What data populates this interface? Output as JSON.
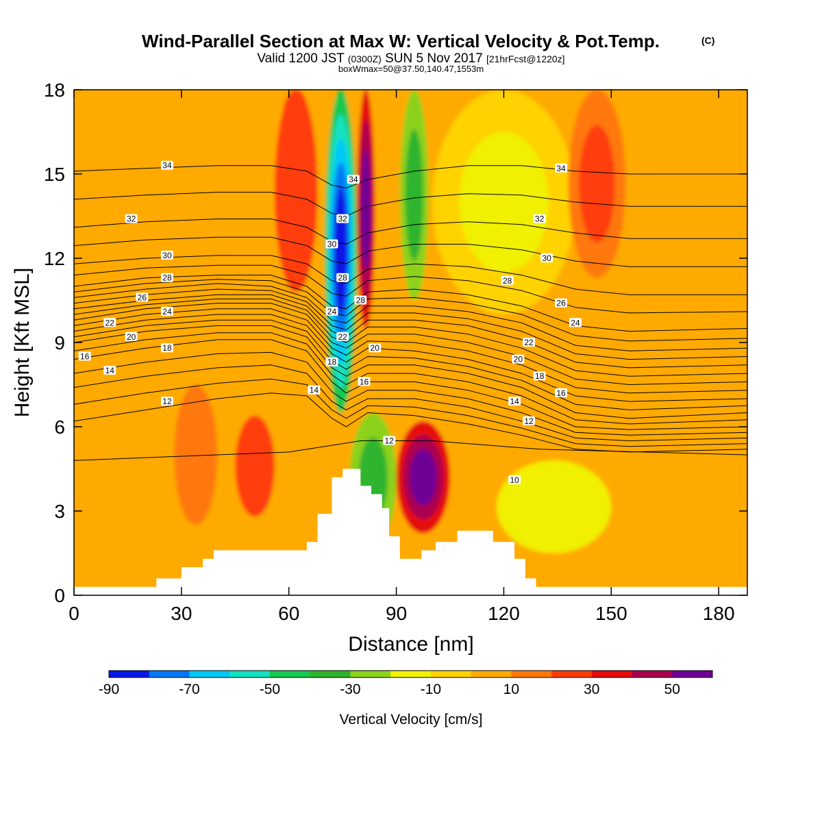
{
  "chart_data": {
    "type": "heatmap",
    "title": "Wind-Parallel Section at Max W: Vertical Velocity & Pot.Temp.",
    "title_mark": "(C)",
    "subtitle": {
      "part1": "Valid 1200 JST",
      "part2": "(0300Z)",
      "part3": "SUN 5 Nov 2017",
      "part4": "[21hrFcst@1220z]"
    },
    "subtitle2": "boxWmax=50@37.50,140.47,1553m",
    "xlabel": "Distance [nm]",
    "ylabel": "Height [Kft MSL]",
    "xlim": [
      0,
      188
    ],
    "ylim": [
      0,
      18
    ],
    "xticks": [
      "0",
      "30",
      "60",
      "90",
      "120",
      "150",
      "180"
    ],
    "yticks": [
      "0",
      "3",
      "6",
      "9",
      "12",
      "15",
      "18"
    ],
    "colorbar": {
      "label": "Vertical Velocity [cm/s]",
      "ticks": [
        "-90",
        "-70",
        "-50",
        "-30",
        "-10",
        "10",
        "30",
        "50"
      ],
      "bounds": [
        -90,
        -80,
        -70,
        -60,
        -50,
        -40,
        -30,
        -20,
        -10,
        0,
        10,
        20,
        30,
        40,
        50,
        60
      ],
      "colors": [
        "#0a18e6",
        "#0078f5",
        "#00c8f5",
        "#14e1c0",
        "#14c850",
        "#2db42d",
        "#8cd21e",
        "#f0f000",
        "#ffd200",
        "#ffaa00",
        "#ff780a",
        "#ff3c0a",
        "#e60a0a",
        "#aa0050",
        "#6e0096"
      ]
    },
    "background_level_range": [
      0,
      10
    ],
    "velocity_features": [
      {
        "x_range": [
          0,
          188
        ],
        "z_range": [
          0,
          18
        ],
        "range_cm_s": [
          0,
          10
        ]
      },
      {
        "x_range": [
          28,
          40
        ],
        "z_range": [
          2.5,
          7.5
        ],
        "range_cm_s": [
          10,
          20
        ]
      },
      {
        "x_range": [
          45,
          56
        ],
        "z_range": [
          2.8,
          6.4
        ],
        "range_cm_s": [
          20,
          30
        ]
      },
      {
        "x_range": [
          56,
          68
        ],
        "z_range": [
          10.8,
          18
        ],
        "range_cm_s": [
          20,
          30
        ]
      },
      {
        "x_range": [
          70,
          79
        ],
        "z_range": [
          6.5,
          18
        ],
        "range_cm_s": [
          -90,
          -40
        ]
      },
      {
        "x_range": [
          79,
          84
        ],
        "z_range": [
          9.5,
          18
        ],
        "range_cm_s": [
          30,
          60
        ]
      },
      {
        "x_range": [
          91,
          99
        ],
        "z_range": [
          10.5,
          18
        ],
        "range_cm_s": [
          -40,
          -20
        ]
      },
      {
        "x_range": [
          77,
          90
        ],
        "z_range": [
          1.8,
          6.5
        ],
        "range_cm_s": [
          -40,
          -20
        ]
      },
      {
        "x_range": [
          90,
          105
        ],
        "z_range": [
          2.2,
          6.2
        ],
        "range_cm_s": [
          30,
          60
        ]
      },
      {
        "x_range": [
          100,
          140
        ],
        "z_range": [
          10,
          18
        ],
        "range_cm_s": [
          -20,
          0
        ]
      },
      {
        "x_range": [
          118,
          150
        ],
        "z_range": [
          1.5,
          4.8
        ],
        "range_cm_s": [
          -20,
          -10
        ]
      },
      {
        "x_range": [
          138,
          154
        ],
        "z_range": [
          11.3,
          18
        ],
        "range_cm_s": [
          10,
          30
        ]
      }
    ],
    "isentropes": [
      {
        "level": "10",
        "z": [
          4.8,
          4.9,
          5.0,
          5.1,
          5.3,
          5.4,
          5.5,
          5.5,
          5.5,
          5.4,
          5.3,
          5.2,
          5.0
        ],
        "x": [
          0,
          20,
          40,
          60,
          70,
          75,
          80,
          90,
          100,
          110,
          120,
          130,
          188
        ]
      },
      {
        "level": "12",
        "z": [
          6.2,
          6.6,
          7.0,
          7.2,
          7.1,
          6.3,
          6.0,
          6.5,
          6.4,
          6.1,
          5.7,
          5.2,
          5.1,
          5.2
        ]
      },
      {
        "level": "14",
        "z": [
          7.4,
          7.8,
          8.1,
          8.2,
          7.9,
          6.9,
          6.6,
          7.0,
          7.0,
          6.7,
          6.2,
          5.6,
          5.5,
          5.6
        ]
      },
      {
        "level": "16",
        "z": [
          8.4,
          8.8,
          9.1,
          9.1,
          8.7,
          7.6,
          7.2,
          7.6,
          7.6,
          7.3,
          6.8,
          6.0,
          5.9,
          6.0
        ]
      },
      {
        "level": "18",
        "z": [
          9.0,
          9.4,
          9.6,
          9.6,
          9.2,
          8.1,
          7.8,
          8.2,
          8.2,
          7.9,
          7.4,
          6.5,
          6.3,
          6.5
        ]
      },
      {
        "level": "20",
        "z": [
          9.4,
          9.8,
          10.0,
          10.0,
          9.6,
          8.6,
          8.3,
          8.8,
          8.7,
          8.4,
          7.9,
          7.1,
          6.9,
          7.0
        ]
      },
      {
        "level": "22",
        "z": [
          9.8,
          10.2,
          10.4,
          10.4,
          10.0,
          9.0,
          8.8,
          9.3,
          9.3,
          9.0,
          8.5,
          7.7,
          7.5,
          7.6
        ]
      },
      {
        "level": "24",
        "z": [
          10.2,
          10.5,
          10.7,
          10.7,
          10.3,
          9.4,
          9.2,
          9.8,
          9.8,
          9.6,
          9.1,
          8.3,
          8.1,
          8.2
        ]
      },
      {
        "level": "26",
        "z": [
          10.6,
          10.9,
          11.1,
          11.0,
          10.6,
          9.8,
          9.7,
          10.3,
          10.3,
          10.1,
          9.7,
          8.9,
          8.7,
          8.8
        ]
      },
      {
        "level": "28",
        "z": [
          11.0,
          11.3,
          11.4,
          11.4,
          11.0,
          10.3,
          10.2,
          10.8,
          10.9,
          10.7,
          10.3,
          9.6,
          9.4,
          9.5
        ]
      },
      {
        "level": "30",
        "z": [
          11.8,
          12.0,
          12.1,
          12.1,
          11.8,
          11.2,
          11.1,
          11.6,
          11.8,
          11.7,
          11.4,
          10.9,
          10.7,
          10.7
        ]
      },
      {
        "level": "32",
        "z": [
          13.1,
          13.3,
          13.4,
          13.4,
          13.1,
          12.6,
          12.5,
          12.9,
          13.2,
          13.3,
          13.2,
          12.9,
          12.7,
          12.7
        ]
      },
      {
        "level": "34",
        "z": [
          15.1,
          15.2,
          15.3,
          15.3,
          15.1,
          14.6,
          14.5,
          14.8,
          15.1,
          15.3,
          15.3,
          15.1,
          15.0,
          15.0
        ]
      }
    ],
    "isentrope_x": [
      0,
      20,
      40,
      55,
      65,
      72,
      76,
      82,
      95,
      110,
      125,
      140,
      155,
      188
    ],
    "terrain": {
      "x": [
        0,
        23,
        23,
        30,
        30,
        36,
        36,
        39,
        39,
        65,
        65,
        68,
        68,
        72,
        72,
        75,
        75,
        80,
        80,
        83,
        83,
        86,
        86,
        88,
        88,
        91,
        91,
        97,
        97,
        101,
        101,
        107,
        107,
        117,
        117,
        123,
        123,
        126,
        126,
        129,
        129,
        188
      ],
      "z": [
        0.3,
        0.3,
        0.6,
        0.6,
        1.0,
        1.0,
        1.3,
        1.3,
        1.6,
        1.6,
        1.9,
        1.9,
        2.9,
        2.9,
        4.2,
        4.2,
        4.5,
        4.5,
        3.9,
        3.9,
        3.6,
        3.6,
        3.1,
        3.1,
        2.1,
        2.1,
        1.3,
        1.3,
        1.6,
        1.6,
        1.9,
        1.9,
        2.3,
        2.3,
        1.9,
        1.9,
        1.3,
        1.3,
        0.6,
        0.6,
        0.3,
        0.3
      ]
    },
    "contour_labels": [
      {
        "text": "34",
        "x": 26,
        "z": 15.3
      },
      {
        "text": "34",
        "x": 78,
        "z": 14.8
      },
      {
        "text": "34",
        "x": 136,
        "z": 15.2
      },
      {
        "text": "32",
        "x": 16,
        "z": 13.4
      },
      {
        "text": "32",
        "x": 75,
        "z": 13.4
      },
      {
        "text": "32",
        "x": 130,
        "z": 13.4
      },
      {
        "text": "30",
        "x": 26,
        "z": 12.1
      },
      {
        "text": "30",
        "x": 72,
        "z": 12.5
      },
      {
        "text": "30",
        "x": 132,
        "z": 12.0
      },
      {
        "text": "28",
        "x": 26,
        "z": 11.3
      },
      {
        "text": "28",
        "x": 75,
        "z": 11.3
      },
      {
        "text": "28",
        "x": 80,
        "z": 10.5
      },
      {
        "text": "28",
        "x": 121,
        "z": 11.2
      },
      {
        "text": "26",
        "x": 19,
        "z": 10.6
      },
      {
        "text": "26",
        "x": 136,
        "z": 10.4
      },
      {
        "text": "24",
        "x": 26,
        "z": 10.1
      },
      {
        "text": "24",
        "x": 72,
        "z": 10.1
      },
      {
        "text": "24",
        "x": 140,
        "z": 9.7
      },
      {
        "text": "22",
        "x": 10,
        "z": 9.7
      },
      {
        "text": "22",
        "x": 75,
        "z": 9.2
      },
      {
        "text": "22",
        "x": 127,
        "z": 9.0
      },
      {
        "text": "20",
        "x": 16,
        "z": 9.2
      },
      {
        "text": "20",
        "x": 84,
        "z": 8.8
      },
      {
        "text": "20",
        "x": 124,
        "z": 8.4
      },
      {
        "text": "18",
        "x": 26,
        "z": 8.8
      },
      {
        "text": "18",
        "x": 72,
        "z": 8.3
      },
      {
        "text": "18",
        "x": 130,
        "z": 7.8
      },
      {
        "text": "16",
        "x": 3,
        "z": 8.5
      },
      {
        "text": "16",
        "x": 81,
        "z": 7.6
      },
      {
        "text": "16",
        "x": 136,
        "z": 7.2
      },
      {
        "text": "14",
        "x": 10,
        "z": 8.0
      },
      {
        "text": "14",
        "x": 67,
        "z": 7.3
      },
      {
        "text": "14",
        "x": 123,
        "z": 6.9
      },
      {
        "text": "12",
        "x": 26,
        "z": 6.9
      },
      {
        "text": "12",
        "x": 88,
        "z": 5.5
      },
      {
        "text": "12",
        "x": 127,
        "z": 6.2
      },
      {
        "text": "10",
        "x": 123,
        "z": 4.1
      }
    ]
  }
}
